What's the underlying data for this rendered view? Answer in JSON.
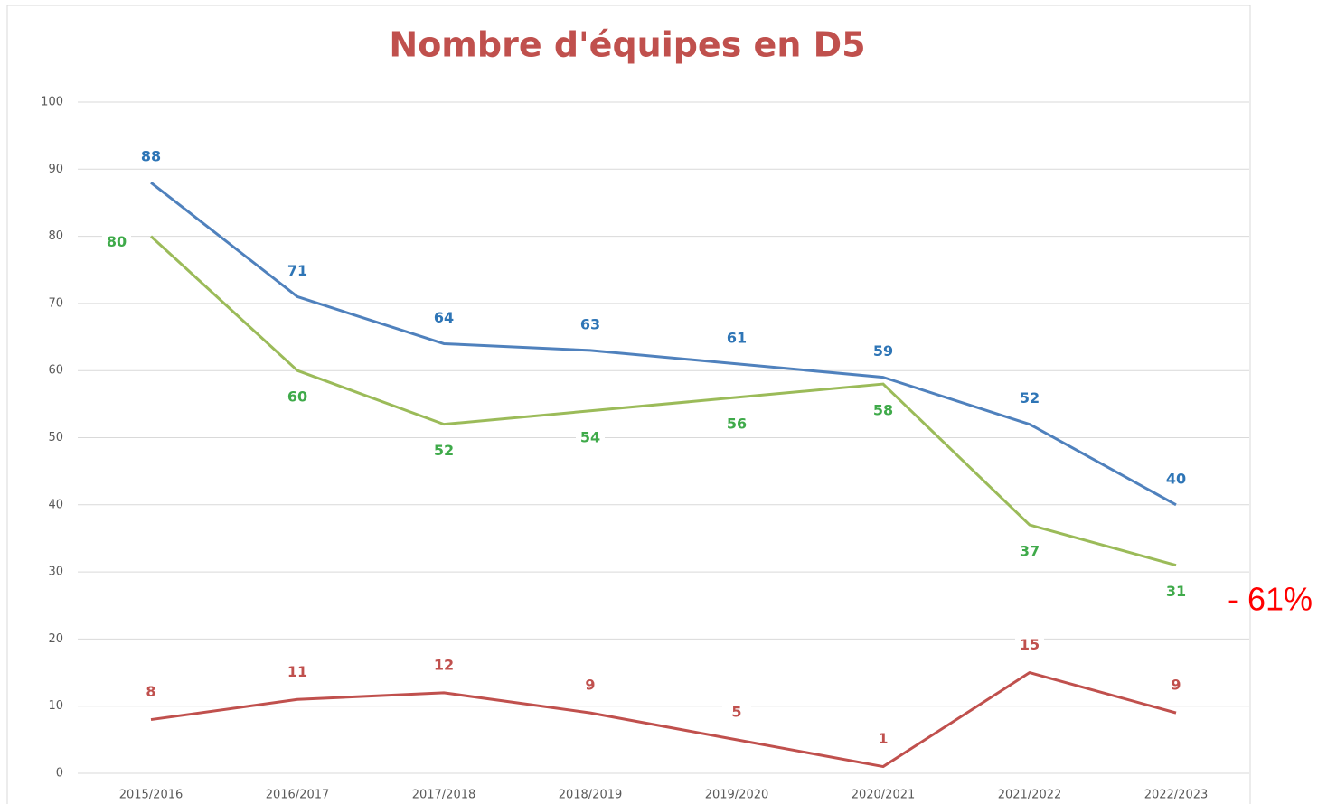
{
  "chart_data": {
    "type": "line",
    "title": "Nombre d'équipes en D5",
    "categories": [
      "2015/2016",
      "2016/2017",
      "2017/2018",
      "2018/2019",
      "2019/2020",
      "2020/2021",
      "2021/2022",
      "2022/2023"
    ],
    "series": [
      {
        "color": "#4f81bd",
        "label_color": "#2e75b6",
        "values": [
          88,
          71,
          64,
          63,
          61,
          59,
          52,
          40
        ]
      },
      {
        "color": "#9bbb59",
        "label_color": "#3faa4a",
        "values": [
          80,
          60,
          52,
          54,
          56,
          58,
          37,
          31
        ]
      },
      {
        "color": "#c0504d",
        "label_color": "#c0504d",
        "values": [
          8,
          11,
          12,
          9,
          5,
          1,
          15,
          9
        ]
      }
    ],
    "ylim": [
      0,
      100
    ],
    "yticks": [
      0,
      10,
      20,
      30,
      40,
      50,
      60,
      70,
      80,
      90,
      100
    ],
    "grid": true,
    "annotation": "- 61%"
  }
}
